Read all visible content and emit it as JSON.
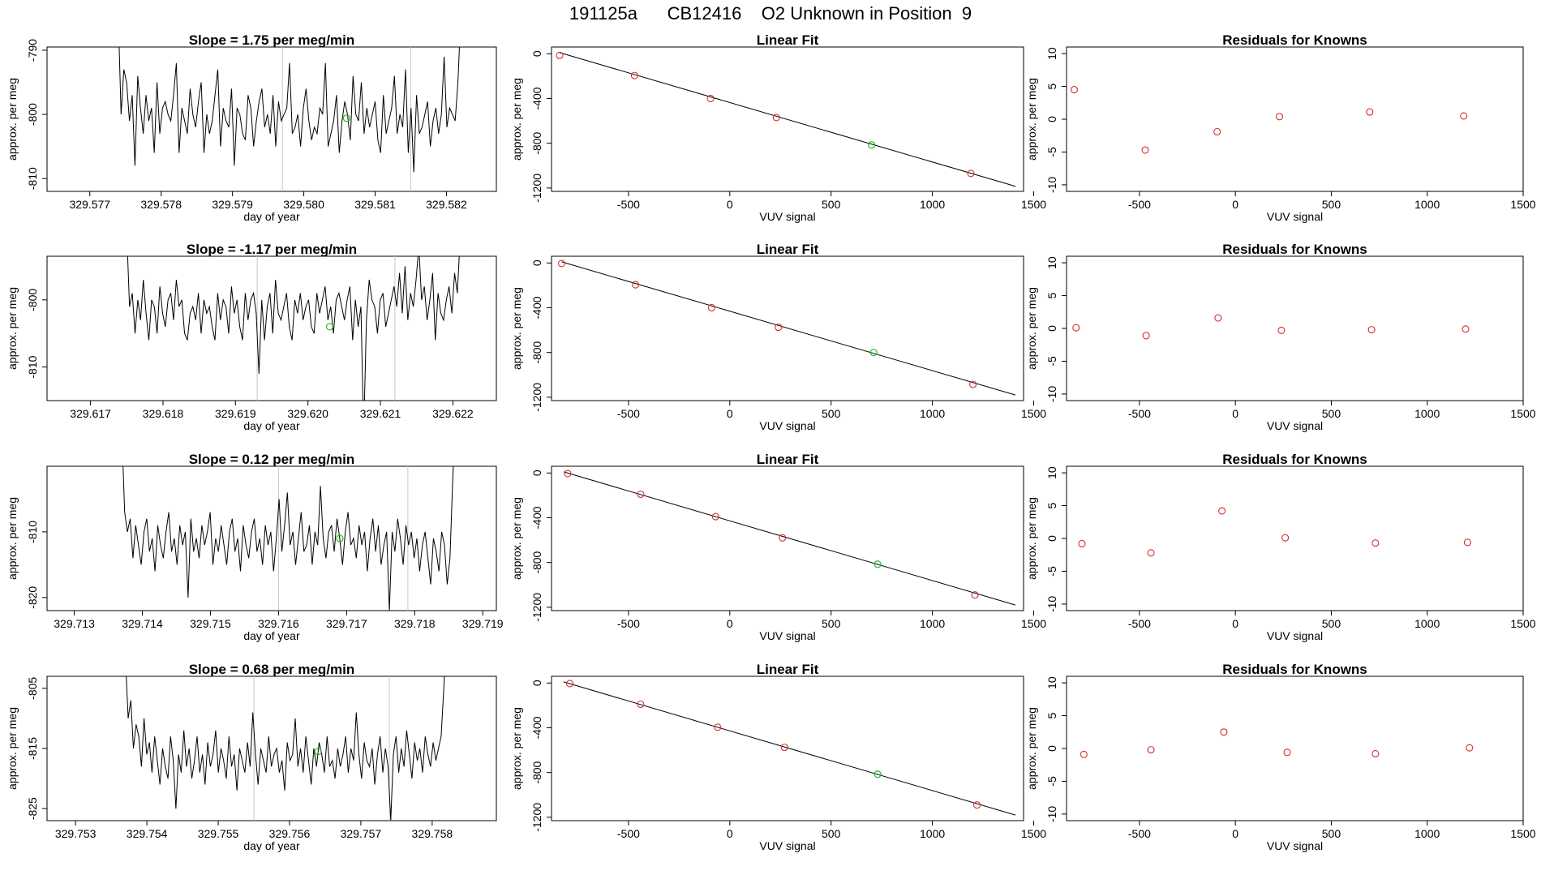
{
  "page_title": "191125a      CB12416    O2 Unknown in Position  9",
  "style": {
    "known_color": "#d22f2f",
    "unknown_color": "#22bb22",
    "line_color": "#000000",
    "guide_color": "#c8c8c8"
  },
  "chart_data": [
    {
      "type": "line",
      "title": "Slope =  1.75  per meg/min",
      "xlabel": "day of year",
      "ylabel": "approx. per meg",
      "xlim": [
        329.5764,
        329.5827
      ],
      "ylim": [
        -812,
        -789.5
      ],
      "xticks": [
        329.577,
        329.578,
        329.579,
        329.58,
        329.581,
        329.582
      ],
      "xtick_labels": [
        "329.577",
        "329.578",
        "329.579",
        "329.580",
        "329.581",
        "329.582"
      ],
      "yticks": [
        -810,
        -800,
        -790
      ],
      "ytick_labels": [
        "-810",
        "-800",
        "-790"
      ],
      "vlines": [
        329.5797,
        329.5815
      ],
      "unknown_point": {
        "x": 329.5806,
        "y": -800.6
      },
      "series_x_range": [
        329.5774,
        329.5822
      ],
      "series": [
        -785,
        -800,
        -793,
        -795,
        -801,
        -797,
        -808,
        -794,
        -799,
        -803,
        -797,
        -801,
        -799,
        -806,
        -795,
        -803,
        -799,
        -798,
        -800,
        -801,
        -797,
        -792,
        -806,
        -799,
        -801,
        -803,
        -796,
        -800,
        -802,
        -798,
        -795,
        -806,
        -800,
        -803,
        -801,
        -797,
        -793,
        -805,
        -799,
        -801,
        -802,
        -796,
        -808,
        -799,
        -800,
        -803,
        -804,
        -797,
        -799,
        -805,
        -801,
        -798,
        -796,
        -802,
        -800,
        -803,
        -797,
        -805,
        -798,
        -801,
        -800,
        -799,
        -792,
        -803,
        -802,
        -800,
        -805,
        -799,
        -796,
        -801,
        -804,
        -802,
        -803,
        -799,
        -800,
        -792,
        -805,
        -803,
        -801,
        -797,
        -806,
        -801,
        -798,
        -800,
        -804,
        -794,
        -800,
        -801,
        -795,
        -803,
        -799,
        -802,
        -800,
        -798,
        -804,
        -806,
        -797,
        -803,
        -801,
        -799,
        -794,
        -803,
        -800,
        -802,
        -793,
        -806,
        -799,
        -809,
        -797,
        -803,
        -802,
        -800,
        -798,
        -805,
        -801,
        -799,
        -803,
        -800,
        -791,
        -802,
        -799,
        -800,
        -801,
        -795,
        -785
      ],
      "series2_title": "Linear Fit",
      "fit": {
        "xlabel": "VUV signal",
        "ylabel": "approx. per meg",
        "xlim": [
          -880,
          1450
        ],
        "ylim": [
          -1230,
          60
        ],
        "xticks": [
          -500,
          0,
          500,
          1000,
          1500
        ],
        "xtick_labels": [
          "-500",
          "0",
          "500",
          "1000",
          "1500"
        ],
        "yticks": [
          0,
          -400,
          -800,
          -1200
        ],
        "ytick_labels": [
          "0",
          "-400",
          "-800",
          "-1200"
        ],
        "line": [
          [
            -840,
            10
          ],
          [
            1410,
            -1185
          ]
        ],
        "knowns": [
          [
            -840,
            -15
          ],
          [
            -470,
            -195
          ],
          [
            -95,
            -400
          ],
          [
            230,
            -570
          ],
          [
            1190,
            -1070
          ]
        ],
        "unknown": [
          700,
          -815
        ]
      },
      "resid": {
        "title": "Residuals for Knowns",
        "xlabel": "VUV signal",
        "ylabel": "approx. per meg",
        "xlim": [
          -880,
          1500
        ],
        "ylim": [
          -11,
          11
        ],
        "xticks": [
          -500,
          0,
          500,
          1000,
          1500
        ],
        "xtick_labels": [
          "-500",
          "0",
          "500",
          "1000",
          "1500"
        ],
        "yticks": [
          10,
          5,
          0,
          -5,
          -10
        ],
        "ytick_labels": [
          "10",
          "5",
          "0",
          "-5",
          "-10"
        ],
        "points": [
          [
            -840,
            4.5
          ],
          [
            -470,
            -4.7
          ],
          [
            -95,
            -1.9
          ],
          [
            230,
            0.4
          ],
          [
            700,
            1.1
          ],
          [
            1190,
            0.5
          ]
        ]
      }
    },
    {
      "type": "line",
      "title": "Slope =  -1.17  per meg/min",
      "xlabel": "day of year",
      "ylabel": "approx. per meg",
      "xlim": [
        329.6164,
        329.6226
      ],
      "ylim": [
        -815,
        -793.5
      ],
      "xticks": [
        329.617,
        329.618,
        329.619,
        329.62,
        329.621,
        329.622
      ],
      "xtick_labels": [
        "329.617",
        "329.618",
        "329.619",
        "329.620",
        "329.621",
        "329.622"
      ],
      "yticks": [
        -810,
        -800
      ],
      "ytick_labels": [
        "-810",
        "-800"
      ],
      "vlines": [
        329.6193,
        329.6212
      ],
      "unknown_point": {
        "x": 329.6203,
        "y": -804
      },
      "series_x_range": [
        329.6175,
        329.6221
      ],
      "series": [
        -790,
        -801,
        -799,
        -805,
        -800,
        -803,
        -797,
        -802,
        -806,
        -800,
        -801,
        -805,
        -798,
        -802,
        -804,
        -800,
        -799,
        -803,
        -797,
        -801,
        -800,
        -805,
        -806,
        -802,
        -801,
        -803,
        -799,
        -805,
        -800,
        -802,
        -801,
        -804,
        -806,
        -799,
        -803,
        -800,
        -801,
        -805,
        -798,
        -802,
        -800,
        -804,
        -806,
        -799,
        -803,
        -800,
        -799,
        -802,
        -811,
        -800,
        -806,
        -801,
        -799,
        -805,
        -797,
        -802,
        -803,
        -801,
        -799,
        -804,
        -806,
        -800,
        -802,
        -799,
        -803,
        -801,
        -800,
        -804,
        -805,
        -799,
        -802,
        -800,
        -798,
        -803,
        -801,
        -805,
        -800,
        -799,
        -801,
        -803,
        -800,
        -798,
        -806,
        -800,
        -804,
        -801,
        -820,
        -803,
        -797,
        -800,
        -801,
        -805,
        -800,
        -799,
        -804,
        -802,
        -800,
        -798,
        -801,
        -796,
        -802,
        -795,
        -803,
        -799,
        -801,
        -797,
        -792,
        -800,
        -798,
        -803,
        -800,
        -796,
        -806,
        -799,
        -802,
        -803,
        -800,
        -798,
        -802,
        -796,
        -799,
        -791
      ],
      "fit": {
        "xlabel": "VUV signal",
        "ylabel": "approx. per meg",
        "xlim": [
          -880,
          1450
        ],
        "ylim": [
          -1230,
          60
        ],
        "xticks": [
          -500,
          0,
          500,
          1000,
          1500
        ],
        "xtick_labels": [
          "-500",
          "0",
          "500",
          "1000",
          "1500"
        ],
        "yticks": [
          0,
          -400,
          -800,
          -1200
        ],
        "ytick_labels": [
          "0",
          "-400",
          "-800",
          "-1200"
        ],
        "line": [
          [
            -830,
            10
          ],
          [
            1410,
            -1180
          ]
        ],
        "knowns": [
          [
            -830,
            -5
          ],
          [
            -465,
            -195
          ],
          [
            -90,
            -400
          ],
          [
            240,
            -575
          ],
          [
            1200,
            -1085
          ]
        ],
        "unknown": [
          710,
          -800
        ]
      },
      "resid": {
        "title": "Residuals for Knowns",
        "xlabel": "VUV signal",
        "ylabel": "approx. per meg",
        "xlim": [
          -880,
          1500
        ],
        "ylim": [
          -11,
          11
        ],
        "xticks": [
          -500,
          0,
          500,
          1000,
          1500
        ],
        "xtick_labels": [
          "-500",
          "0",
          "500",
          "1000",
          "1500"
        ],
        "yticks": [
          10,
          5,
          0,
          -5,
          -10
        ],
        "ytick_labels": [
          "10",
          "5",
          "0",
          "-5",
          "-10"
        ],
        "points": [
          [
            -830,
            0.1
          ],
          [
            -465,
            -1.1
          ],
          [
            -90,
            1.6
          ],
          [
            240,
            -0.3
          ],
          [
            710,
            -0.2
          ],
          [
            1200,
            -0.1
          ]
        ]
      }
    },
    {
      "type": "line",
      "title": "Slope =  0.12  per meg/min",
      "xlabel": "day of year",
      "ylabel": "approx. per meg",
      "xlim": [
        329.7126,
        329.7192
      ],
      "ylim": [
        -822,
        -800
      ],
      "xticks": [
        329.713,
        329.714,
        329.715,
        329.716,
        329.717,
        329.718,
        329.719
      ],
      "xtick_labels": [
        "329.713",
        "329.714",
        "329.715",
        "329.716",
        "329.717",
        "329.718",
        "329.719"
      ],
      "yticks": [
        -820,
        -810
      ],
      "ytick_labels": [
        "-820",
        "-810"
      ],
      "vlines": [
        329.716,
        329.7179
      ],
      "unknown_point": {
        "x": 329.7169,
        "y": -811
      },
      "series_x_range": [
        329.7137,
        329.7186
      ],
      "series": [
        -795,
        -807,
        -810,
        -808,
        -814,
        -809,
        -812,
        -815,
        -810,
        -808,
        -813,
        -811,
        -816,
        -809,
        -812,
        -814,
        -810,
        -807,
        -813,
        -811,
        -815,
        -809,
        -812,
        -810,
        -820,
        -808,
        -813,
        -811,
        -814,
        -809,
        -812,
        -810,
        -807,
        -815,
        -811,
        -813,
        -809,
        -812,
        -815,
        -810,
        -808,
        -813,
        -811,
        -816,
        -809,
        -812,
        -814,
        -810,
        -808,
        -813,
        -811,
        -815,
        -809,
        -812,
        -810,
        -816,
        -811,
        -805,
        -813,
        -809,
        -804,
        -812,
        -810,
        -815,
        -811,
        -807,
        -813,
        -812,
        -809,
        -815,
        -810,
        -812,
        -803,
        -811,
        -814,
        -810,
        -809,
        -813,
        -808,
        -811,
        -815,
        -810,
        -807,
        -812,
        -811,
        -814,
        -809,
        -812,
        -810,
        -816,
        -811,
        -808,
        -813,
        -809,
        -815,
        -812,
        -810,
        -822,
        -810,
        -813,
        -808,
        -811,
        -815,
        -809,
        -812,
        -810,
        -814,
        -811,
        -816,
        -812,
        -810,
        -814,
        -818,
        -811,
        -813,
        -816,
        -810,
        -812,
        -818,
        -814,
        -802,
        -793
      ],
      "fit": {
        "xlabel": "VUV signal",
        "ylabel": "approx. per meg",
        "xlim": [
          -880,
          1450
        ],
        "ylim": [
          -1230,
          60
        ],
        "xticks": [
          -500,
          0,
          500,
          1000,
          1500
        ],
        "xtick_labels": [
          "-500",
          "0",
          "500",
          "1000",
          "1500"
        ],
        "yticks": [
          0,
          -400,
          -800,
          -1200
        ],
        "ytick_labels": [
          "0",
          "-400",
          "-800",
          "-1200"
        ],
        "line": [
          [
            -820,
            10
          ],
          [
            1410,
            -1180
          ]
        ],
        "knowns": [
          [
            -800,
            -5
          ],
          [
            -440,
            -190
          ],
          [
            -70,
            -390
          ],
          [
            260,
            -580
          ],
          [
            1210,
            -1090
          ]
        ],
        "unknown": [
          730,
          -815
        ]
      },
      "resid": {
        "title": "Residuals for Knowns",
        "xlabel": "VUV signal",
        "ylabel": "approx. per meg",
        "xlim": [
          -880,
          1500
        ],
        "ylim": [
          -11,
          11
        ],
        "xticks": [
          -500,
          0,
          500,
          1000,
          1500
        ],
        "xtick_labels": [
          "-500",
          "0",
          "500",
          "1000",
          "1500"
        ],
        "yticks": [
          10,
          5,
          0,
          -5,
          -10
        ],
        "ytick_labels": [
          "10",
          "5",
          "0",
          "-5",
          "-10"
        ],
        "points": [
          [
            -800,
            -0.8
          ],
          [
            -440,
            -2.2
          ],
          [
            -70,
            4.2
          ],
          [
            260,
            0.1
          ],
          [
            730,
            -0.7
          ],
          [
            1210,
            -0.6
          ]
        ]
      }
    },
    {
      "type": "line",
      "title": "Slope =  0.68  per meg/min",
      "xlabel": "day of year",
      "ylabel": "approx. per meg",
      "xlim": [
        329.7526,
        329.7589
      ],
      "ylim": [
        -827,
        -803
      ],
      "xticks": [
        329.753,
        329.754,
        329.755,
        329.756,
        329.757,
        329.758
      ],
      "xtick_labels": [
        "329.753",
        "329.754",
        "329.755",
        "329.756",
        "329.757",
        "329.758"
      ],
      "yticks": [
        -825,
        -815,
        -805
      ],
      "ytick_labels": [
        "-825",
        "-815",
        "-805"
      ],
      "vlines": [
        329.7555,
        329.7574
      ],
      "unknown_point": {
        "x": 329.7564,
        "y": -815.5
      },
      "series_x_range": [
        329.7537,
        329.7582
      ],
      "series": [
        -800,
        -810,
        -807,
        -815,
        -811,
        -813,
        -818,
        -810,
        -816,
        -814,
        -819,
        -813,
        -817,
        -821,
        -815,
        -818,
        -820,
        -813,
        -817,
        -825,
        -816,
        -819,
        -812,
        -818,
        -815,
        -820,
        -817,
        -813,
        -819,
        -816,
        -821,
        -814,
        -818,
        -816,
        -812,
        -819,
        -815,
        -817,
        -820,
        -813,
        -818,
        -816,
        -822,
        -815,
        -817,
        -819,
        -814,
        -818,
        -809,
        -816,
        -821,
        -815,
        -817,
        -819,
        -813,
        -818,
        -816,
        -815,
        -819,
        -817,
        -822,
        -814,
        -817,
        -816,
        -810,
        -818,
        -815,
        -819,
        -813,
        -817,
        -821,
        -815,
        -818,
        -814,
        -816,
        -819,
        -813,
        -818,
        -817,
        -820,
        -815,
        -818,
        -816,
        -813,
        -819,
        -815,
        -817,
        -809,
        -816,
        -820,
        -814,
        -817,
        -818,
        -815,
        -821,
        -816,
        -813,
        -819,
        -815,
        -818,
        -827,
        -816,
        -813,
        -819,
        -815,
        -818,
        -812,
        -816,
        -820,
        -814,
        -817,
        -815,
        -819,
        -813,
        -816,
        -818,
        -814,
        -817,
        -815,
        -813,
        -805,
        -795
      ],
      "fit": {
        "xlabel": "VUV signal",
        "ylabel": "approx. per meg",
        "xlim": [
          -880,
          1450
        ],
        "ylim": [
          -1230,
          60
        ],
        "xticks": [
          -500,
          0,
          500,
          1000,
          1500
        ],
        "xtick_labels": [
          "-500",
          "0",
          "500",
          "1000",
          "1500"
        ],
        "yticks": [
          0,
          -400,
          -800,
          -1200
        ],
        "ytick_labels": [
          "0",
          "-400",
          "-800",
          "-1200"
        ],
        "line": [
          [
            -820,
            10
          ],
          [
            1410,
            -1180
          ]
        ],
        "knowns": [
          [
            -790,
            -5
          ],
          [
            -440,
            -190
          ],
          [
            -60,
            -395
          ],
          [
            270,
            -575
          ],
          [
            1220,
            -1090
          ]
        ],
        "unknown": [
          730,
          -815
        ]
      },
      "resid": {
        "title": "Residuals for Knowns",
        "xlabel": "VUV signal",
        "ylabel": "approx. per meg",
        "xlim": [
          -880,
          1500
        ],
        "ylim": [
          -11,
          11
        ],
        "xticks": [
          -500,
          0,
          500,
          1000,
          1500
        ],
        "xtick_labels": [
          "-500",
          "0",
          "500",
          "1000",
          "1500"
        ],
        "yticks": [
          10,
          5,
          0,
          -5,
          -10
        ],
        "ytick_labels": [
          "10",
          "5",
          "0",
          "-5",
          "-10"
        ],
        "points": [
          [
            -790,
            -0.9
          ],
          [
            -440,
            -0.2
          ],
          [
            -60,
            2.5
          ],
          [
            270,
            -0.6
          ],
          [
            730,
            -0.8
          ],
          [
            1220,
            0.1
          ]
        ]
      }
    }
  ]
}
